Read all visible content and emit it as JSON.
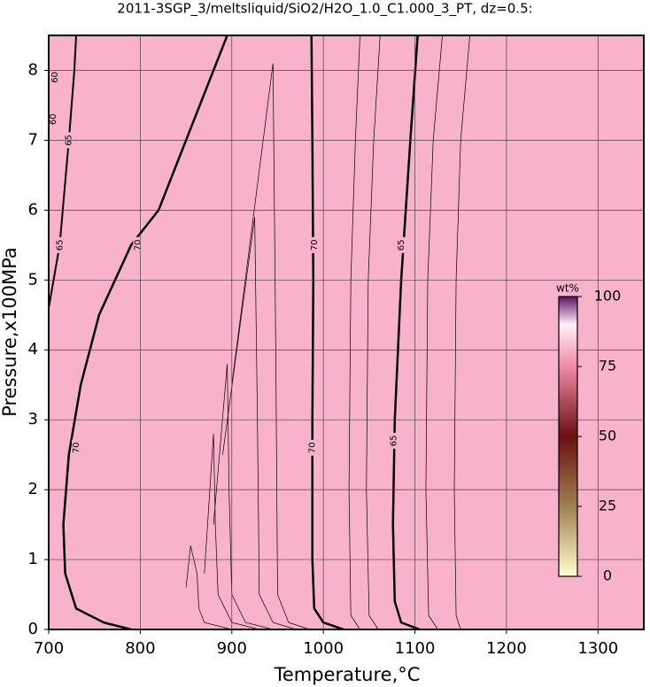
{
  "chart_data": {
    "type": "contour",
    "title": "2011-3SGP_3/meltsliquid/SiO2/H2O_1.0_C1.000_3_PT, dz=0.5:",
    "xlabel": "Temperature,°C",
    "ylabel": "Pressure,x100MPa",
    "xlim": [
      700,
      1350
    ],
    "ylim": [
      0,
      8.5
    ],
    "xticks": [
      700,
      800,
      900,
      1000,
      1100,
      1200,
      1300
    ],
    "yticks": [
      0,
      1,
      2,
      3,
      4,
      5,
      6,
      7,
      8
    ],
    "grid": true,
    "background": "#f8b2cc",
    "series": [
      {
        "color": "#000",
        "linewidth": 2.5,
        "x": [
          790,
          760,
          730,
          718,
          716,
          722,
          735,
          755,
          790,
          820,
          850,
          895
        ],
        "values": [
          0,
          0.1,
          0.3,
          0.8,
          1.5,
          2.5,
          3.5,
          4.5,
          5.5,
          6.0,
          7.0,
          8.5
        ]
      },
      {
        "color": "#000",
        "linewidth": 2.5,
        "x": [
          1022,
          1000,
          990,
          988,
          988,
          989,
          988,
          987
        ],
        "values": [
          0,
          0.1,
          0.3,
          1,
          3,
          5,
          7,
          8.5
        ]
      },
      {
        "color": "#000",
        "linewidth": 2.5,
        "x": [
          1105,
          1085,
          1078,
          1076,
          1078,
          1085,
          1095,
          1103
        ],
        "values": [
          0,
          0.1,
          0.4,
          1.5,
          3,
          5,
          7,
          8.5
        ]
      },
      {
        "color": "#000",
        "linewidth": 2,
        "x": [
          700,
          712,
          722,
          728,
          730
        ],
        "values": [
          4.6,
          5.5,
          7,
          8,
          8.5
        ]
      },
      {
        "color": "#000",
        "linewidth": 0.7,
        "x": [
          850,
          855,
          862,
          864,
          870,
          900
        ],
        "values": [
          0.6,
          1.2,
          0.8,
          0.3,
          0.1,
          0
        ]
      },
      {
        "color": "#000",
        "linewidth": 0.7,
        "x": [
          870,
          880,
          882,
          885,
          900,
          930
        ],
        "values": [
          0.8,
          2.8,
          1.5,
          0.5,
          0.1,
          0
        ]
      },
      {
        "color": "#000",
        "linewidth": 0.7,
        "x": [
          880,
          895,
          897,
          900,
          915,
          945
        ],
        "values": [
          1.5,
          3.8,
          2,
          0.5,
          0.1,
          0
        ]
      },
      {
        "color": "#000",
        "linewidth": 0.7,
        "x": [
          890,
          925,
          928,
          930,
          945,
          970
        ],
        "values": [
          2.5,
          5.9,
          3,
          0.5,
          0.1,
          0
        ]
      },
      {
        "color": "#000",
        "linewidth": 0.7,
        "x": [
          900,
          945,
          948,
          950,
          962,
          985
        ],
        "values": [
          3.5,
          8.1,
          4,
          0.5,
          0.1,
          0
        ]
      },
      {
        "color": "#000",
        "linewidth": 0.7,
        "x": [
          1040,
          1030,
          1028,
          1030,
          1035,
          1040
        ],
        "values": [
          0,
          0.2,
          2,
          5,
          7,
          8.5
        ]
      },
      {
        "color": "#000",
        "linewidth": 0.7,
        "x": [
          1060,
          1050,
          1047,
          1049,
          1055,
          1062
        ],
        "values": [
          0,
          0.2,
          2,
          5,
          7,
          8.5
        ]
      },
      {
        "color": "#000",
        "linewidth": 0.7,
        "x": [
          1125,
          1115,
          1112,
          1114,
          1120,
          1130
        ],
        "values": [
          0,
          0.2,
          2,
          5,
          7,
          8.5
        ]
      },
      {
        "color": "#000",
        "linewidth": 0.7,
        "x": [
          1150,
          1145,
          1143,
          1145,
          1150,
          1160
        ],
        "values": [
          0,
          0.2,
          2,
          5,
          7,
          8.5
        ]
      }
    ],
    "contour_labels": [
      {
        "text": 70,
        "x": 797,
        "y": 5.5
      },
      {
        "text": 70,
        "x": 990,
        "y": 5.5
      },
      {
        "text": 65,
        "x": 1085,
        "y": 5.5
      },
      {
        "text": 65,
        "x": 712,
        "y": 5.5
      },
      {
        "text": 70,
        "x": 730,
        "y": 2.6
      },
      {
        "text": 70,
        "x": 988,
        "y": 2.6
      },
      {
        "text": 65,
        "x": 1077,
        "y": 2.7
      },
      {
        "text": 65,
        "x": 722,
        "y": 7.0
      },
      {
        "text": 60,
        "x": 707,
        "y": 7.9
      },
      {
        "text": 60,
        "x": 705,
        "y": 7.3
      }
    ],
    "colorbar": {
      "label": "wt%",
      "lim": [
        0,
        100
      ],
      "ticks": [
        0,
        25,
        50,
        75,
        100
      ]
    }
  }
}
